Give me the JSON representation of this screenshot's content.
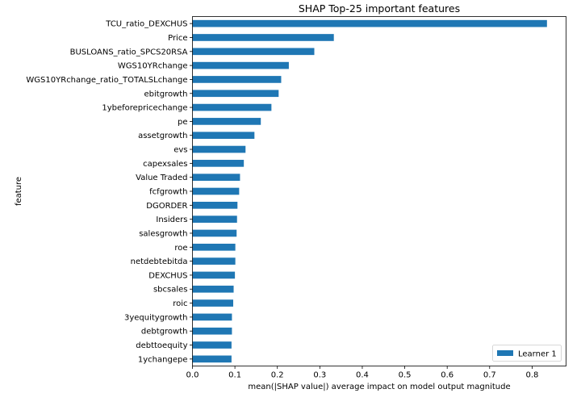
{
  "chart_data": {
    "type": "bar",
    "orientation": "horizontal",
    "title": "SHAP Top-25 important features",
    "xlabel": "mean(|SHAP value|) average impact on model output magnitude",
    "ylabel": "feature",
    "xlim": [
      0,
      0.88
    ],
    "xticks": [
      0,
      0.1,
      0.2,
      0.3,
      0.4,
      0.5,
      0.6,
      0.7,
      0.8
    ],
    "xtick_labels": [
      "0.0",
      "0.1",
      "0.2",
      "0.3",
      "0.4",
      "0.5",
      "0.6",
      "0.7",
      "0.8"
    ],
    "grid": false,
    "legend_position": "lower-right",
    "categories": [
      "TCU_ratio_DEXCHUS",
      "Price",
      "BUSLOANS_ratio_SPCS20RSA",
      "WGS10YRchange",
      "WGS10YRchange_ratio_TOTALSLchange",
      "ebitgrowth",
      "1ybeforepricechange",
      "pe",
      "assetgrowth",
      "evs",
      "capexsales",
      "Value Traded",
      "fcfgrowth",
      "DGORDER",
      "Insiders",
      "salesgrowth",
      "roe",
      "netdebtebitda",
      "DEXCHUS",
      "sbcsales",
      "roic",
      "3yequitygrowth",
      "debtgrowth",
      "debttoequity",
      "1ychangepe"
    ],
    "series": [
      {
        "name": "Learner 1",
        "color": "#1f77b4",
        "values": [
          0.835,
          0.333,
          0.287,
          0.227,
          0.209,
          0.203,
          0.186,
          0.161,
          0.146,
          0.125,
          0.121,
          0.112,
          0.11,
          0.106,
          0.105,
          0.104,
          0.101,
          0.101,
          0.1,
          0.097,
          0.096,
          0.093,
          0.093,
          0.092,
          0.092
        ]
      }
    ]
  }
}
